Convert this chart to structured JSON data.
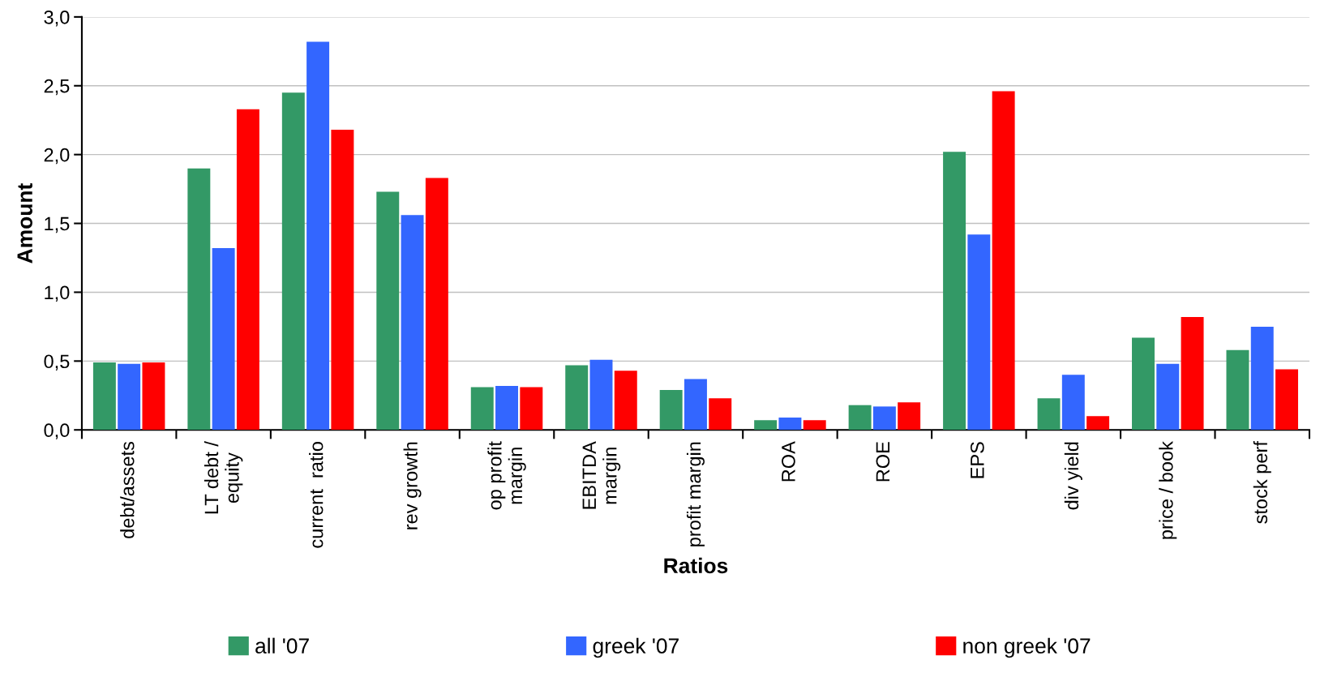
{
  "chart_data": {
    "type": "bar",
    "xlabel": "Ratios",
    "ylabel": "Amount",
    "categories": [
      "debt/assets",
      "LT debt /\nequity",
      "current  ratio",
      "rev growth",
      "op profit\nmargin",
      "EBITDA\nmargin",
      "profit margin",
      "ROA",
      "ROE",
      "EPS",
      "div yield",
      "price / book",
      "stock perf"
    ],
    "series": [
      {
        "name": "all '07",
        "color": "#339966",
        "values": [
          0.49,
          1.9,
          2.45,
          1.73,
          0.31,
          0.47,
          0.29,
          0.07,
          0.18,
          2.02,
          0.23,
          0.67,
          0.58
        ]
      },
      {
        "name": "greek '07",
        "color": "#3366ff",
        "values": [
          0.48,
          1.32,
          2.82,
          1.56,
          0.32,
          0.51,
          0.37,
          0.09,
          0.17,
          1.42,
          0.4,
          0.48,
          0.75
        ]
      },
      {
        "name": "non greek '07",
        "color": "#ff0000",
        "values": [
          0.49,
          2.33,
          2.18,
          1.83,
          0.31,
          0.43,
          0.23,
          0.07,
          0.2,
          2.46,
          0.1,
          0.82,
          0.44
        ]
      }
    ],
    "ylim": [
      0,
      3.0
    ],
    "yticks": [
      {
        "value": 0,
        "label": "0,0"
      },
      {
        "value": 0.5,
        "label": "0,5"
      },
      {
        "value": 1.0,
        "label": "1,0"
      },
      {
        "value": 1.5,
        "label": "1,5"
      },
      {
        "value": 2.0,
        "label": "2,0"
      },
      {
        "value": 2.5,
        "label": "2,5"
      },
      {
        "value": 3.0,
        "label": "3,0"
      }
    ],
    "grid": "y",
    "legend": "bottom"
  }
}
